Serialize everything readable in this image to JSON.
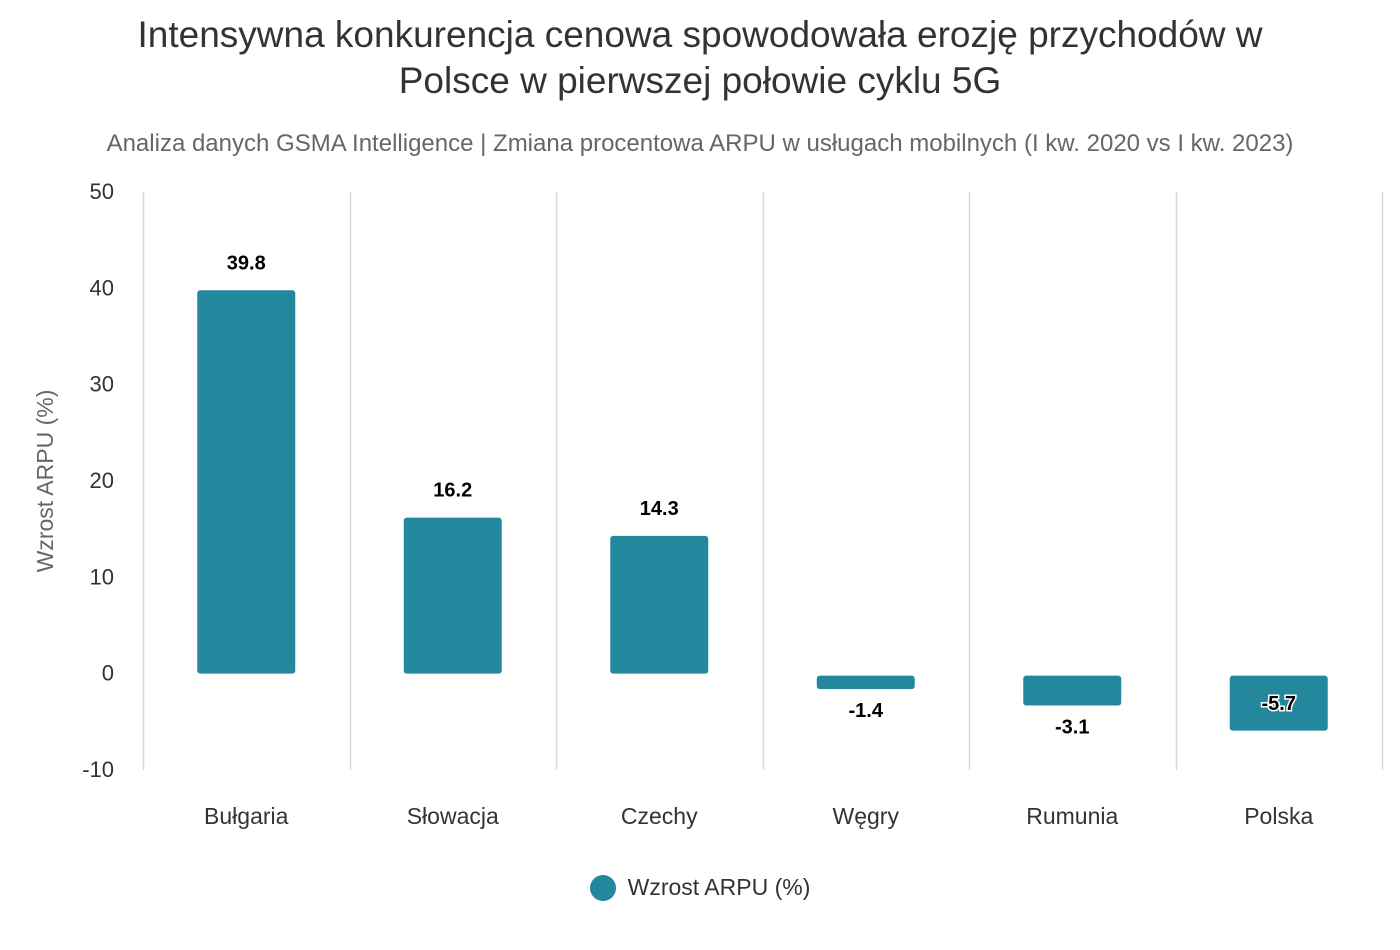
{
  "colors": {
    "bar": "#23889d",
    "grid": "#d9d9d9",
    "axis_text": "#333333"
  },
  "chart_data": {
    "type": "bar",
    "title_lines": [
      "Intensywna konkurencja cenowa spowodowała erozję przychodów w",
      "Polsce w pierwszej połowie cyklu 5G"
    ],
    "subtitle": "Analiza danych GSMA Intelligence | Zmiana procentowa ARPU w usługach mobilnych (I kw. 2020 vs I kw. 2023)",
    "xlabel": "",
    "ylabel": "Wzrost ARPU (%)",
    "ylim": [
      -10,
      50
    ],
    "yticks": [
      50,
      40,
      30,
      20,
      10,
      0,
      -10
    ],
    "categories": [
      "Bułgaria",
      "Słowacja",
      "Czechy",
      "Węgry",
      "Rumunia",
      "Polska"
    ],
    "series": [
      {
        "name": "Wzrost ARPU (%)",
        "values": [
          39.8,
          16.2,
          14.3,
          -1.4,
          -3.1,
          -5.7
        ],
        "labels": [
          "39.8",
          "16.2",
          "14.3",
          "-1.4",
          "-3.1",
          "-5.7"
        ]
      }
    ],
    "grid": "vertical",
    "legend_position": "bottom"
  }
}
